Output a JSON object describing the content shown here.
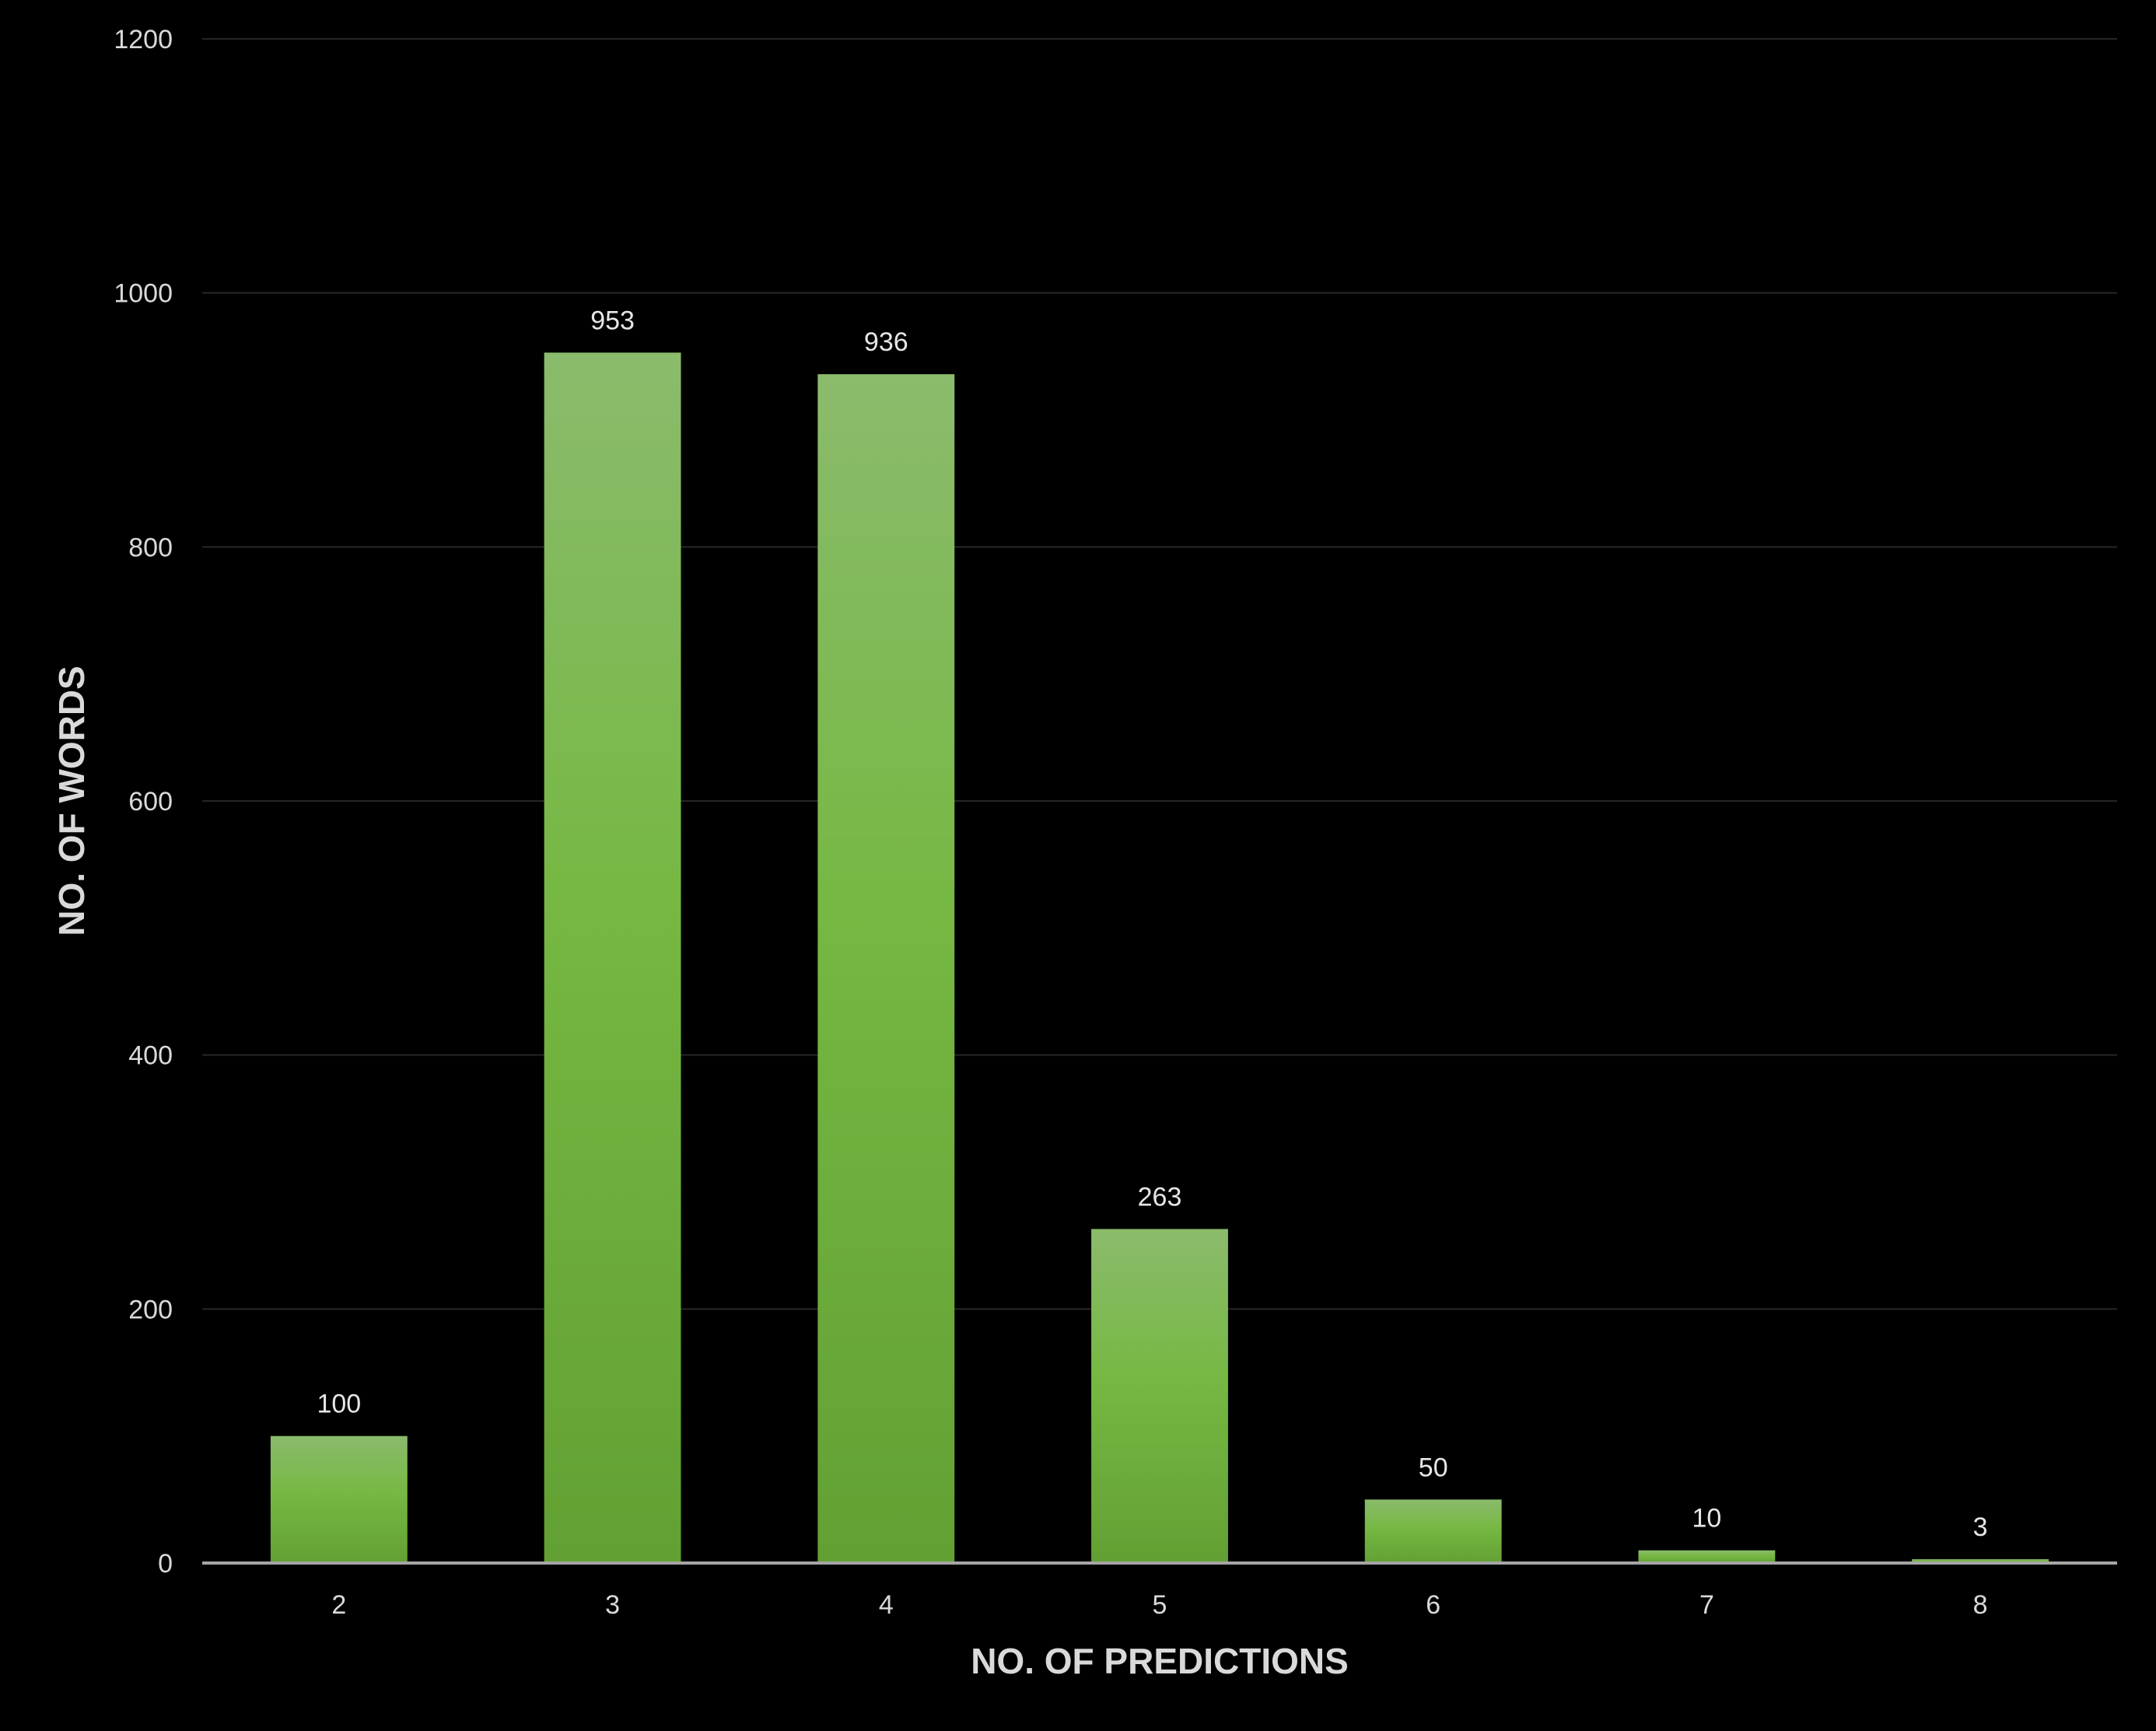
{
  "chart_data": {
    "type": "bar",
    "title": "",
    "xlabel": "NO. OF PREDICTIONS",
    "ylabel": "NO. OF WORDS",
    "categories": [
      "2",
      "3",
      "4",
      "5",
      "6",
      "7",
      "8"
    ],
    "series": [
      {
        "values": [
          100,
          953,
          936,
          263,
          50,
          10,
          3
        ]
      }
    ],
    "data_labels": [
      "100",
      "953",
      "936",
      "263",
      "50",
      "10",
      "3"
    ],
    "ylim": [
      0,
      1200
    ],
    "yticks": [
      "0",
      "200",
      "400",
      "600",
      "800",
      "1000",
      "1200"
    ],
    "grid": true,
    "legend": "none",
    "colors": {
      "background": "#000000",
      "bar_top": "#8bbb6c",
      "bar_mid": "#76b843",
      "bar_bottom": "#62a033",
      "gridline": "#262626",
      "baseline": "#a6a6a6",
      "text": "#d9d9d9"
    }
  }
}
